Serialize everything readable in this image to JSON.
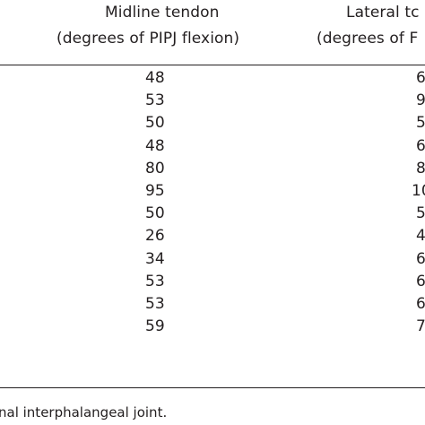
{
  "table": {
    "headers": {
      "midline": {
        "line1": "Midline tendon",
        "line2": "(degrees of PIPJ flexion)"
      },
      "lateral": {
        "line1": "Lateral tc",
        "line2": "(degrees of F"
      }
    },
    "rows": [
      {
        "midline": "48",
        "lateral": "6"
      },
      {
        "midline": "53",
        "lateral": "9"
      },
      {
        "midline": "50",
        "lateral": "5"
      },
      {
        "midline": "48",
        "lateral": "6"
      },
      {
        "midline": "80",
        "lateral": "8"
      },
      {
        "midline": "95",
        "lateral": "10"
      },
      {
        "midline": "50",
        "lateral": "5"
      },
      {
        "midline": "26",
        "lateral": "4"
      },
      {
        "midline": "34",
        "lateral": "6"
      },
      {
        "midline": "53",
        "lateral": "6"
      },
      {
        "midline": "53",
        "lateral": "6"
      },
      {
        "midline": "59",
        "lateral": "7"
      }
    ]
  },
  "footnote": "nal interphalangeal joint."
}
